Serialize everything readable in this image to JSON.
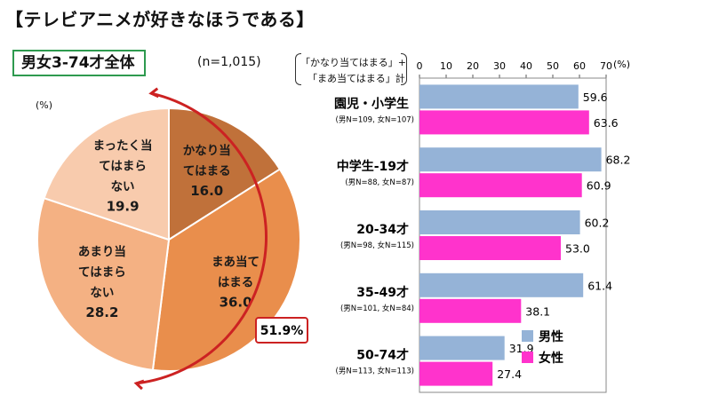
{
  "title": "【テレビアニメが好きなほうである】",
  "subset_label": "男女3-74才全体",
  "sample_size": "(n=1,015)",
  "pie_unit": "(%)",
  "combined_total": "51.9%",
  "bar_definition": {
    "line1": "「かなり当てはまる」+",
    "line2": "「まあ当てはまる」計"
  },
  "bar_unit": "(%)",
  "colors": {
    "male": "#95b3d7",
    "female": "#ff33cc",
    "pie_dark": "#c0713a",
    "pie_mid": "#e98e4c",
    "pie_light": "#f4b183",
    "pie_pale": "#f8cbad",
    "arc": "#cc2222",
    "box_green": "#2e9a4f"
  },
  "chart_data": [
    {
      "type": "pie",
      "slices": [
        {
          "label_lines": [
            "かなり当",
            "てはまる"
          ],
          "value": 16.0,
          "value_text": "16.0"
        },
        {
          "label_lines": [
            "まあ当て",
            "はまる"
          ],
          "value": 36.0,
          "value_text": "36.0"
        },
        {
          "label_lines": [
            "あまり当",
            "てはまら",
            "ない"
          ],
          "value": 28.2,
          "value_text": "28.2"
        },
        {
          "label_lines": [
            "まったく当",
            "てはまら",
            "ない"
          ],
          "value": 19.9,
          "value_text": "19.9"
        }
      ]
    },
    {
      "type": "bar",
      "orientation": "horizontal",
      "xlim": [
        0,
        70
      ],
      "xticks": [
        "0",
        "10",
        "20",
        "30",
        "40",
        "50",
        "60",
        "70"
      ],
      "categories": [
        {
          "label": "園児・小学生",
          "sub": "(男N=109, 女N=107)"
        },
        {
          "label": "中学生-19才",
          "sub": "(男N=88, 女N=87)"
        },
        {
          "label": "20-34才",
          "sub": "(男N=98, 女N=115)"
        },
        {
          "label": "35-49才",
          "sub": "(男N=101, 女N=84)"
        },
        {
          "label": "50-74才",
          "sub": "(男N=113, 女N=113)"
        }
      ],
      "series": [
        {
          "name": "男性",
          "values": [
            59.6,
            68.2,
            60.2,
            61.4,
            31.9
          ],
          "labels": [
            "59.6",
            "68.2",
            "60.2",
            "61.4",
            "31.9"
          ]
        },
        {
          "name": "女性",
          "values": [
            63.6,
            60.9,
            53.0,
            38.1,
            27.4
          ],
          "labels": [
            "63.6",
            "60.9",
            "53.0",
            "38.1",
            "27.4"
          ]
        }
      ],
      "legend": "bottom-right"
    }
  ]
}
